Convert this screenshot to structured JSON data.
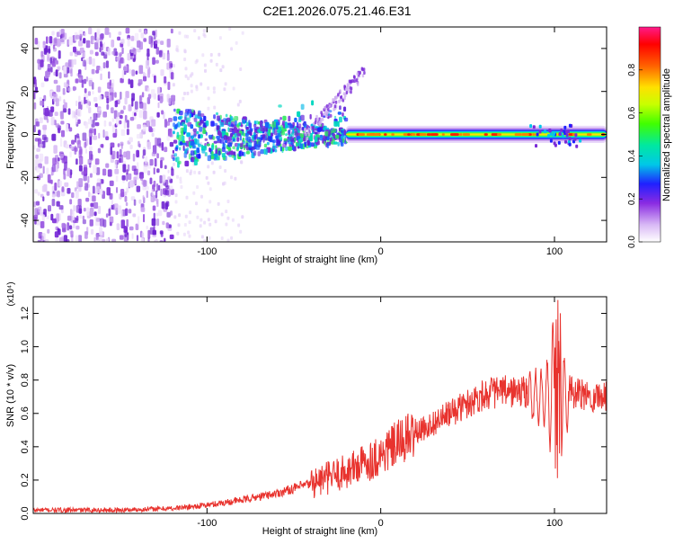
{
  "page_title": "C2E1.2026.075.21.46.E31",
  "chart_data": [
    {
      "type": "heatmap",
      "title": "C2E1.2026.075.21.46.E31",
      "xlabel": "Height of straight line (km)",
      "ylabel": "Frequency (Hz)",
      "xlim": [
        -200,
        130
      ],
      "ylim": [
        -50,
        50
      ],
      "x_ticks": [
        -100,
        0,
        100
      ],
      "x_tick_labels": [
        "-100",
        "0",
        "100"
      ],
      "y_ticks": [
        -40,
        -20,
        0,
        20,
        40
      ],
      "y_tick_labels": [
        "-40",
        "-20",
        "0",
        "20",
        "40"
      ],
      "colorbar": {
        "label": "Normalized spectral amplitude",
        "range": [
          0.0,
          1.0
        ],
        "ticks": [
          0.0,
          0.2,
          0.4,
          0.6,
          0.8
        ],
        "tick_labels": [
          "0.0",
          "0.2",
          "0.4",
          "0.6",
          "0.8"
        ]
      },
      "band": {
        "center_freq_hz": 0,
        "half_width_hz": 3,
        "noise_region_km": [
          -200,
          -120
        ],
        "scatter_region_km": [
          -120,
          -20
        ],
        "clean_band_region_km": [
          -20,
          130
        ]
      }
    },
    {
      "type": "line",
      "xlabel": "Height of straight line (km)",
      "ylabel": "SNR (10 * v/v)",
      "scale_label": "(x10⁴)",
      "xlim": [
        -200,
        130
      ],
      "ylim": [
        0,
        1.3
      ],
      "x_ticks": [
        -100,
        0,
        100
      ],
      "x_tick_labels": [
        "-100",
        "0",
        "100"
      ],
      "y_ticks": [
        0.0,
        0.2,
        0.4,
        0.6,
        0.8,
        1.0,
        1.2
      ],
      "y_tick_labels": [
        "0.0",
        "0.2",
        "0.4",
        "0.6",
        "0.8",
        "1.0",
        "1.2"
      ],
      "series": [
        {
          "name": "SNR",
          "color": "#e8332e",
          "x": [
            -200,
            -150,
            -120,
            -100,
            -80,
            -60,
            -40,
            -20,
            0,
            10,
            20,
            40,
            60,
            70,
            80,
            85,
            90,
            95,
            100,
            102,
            105,
            110,
            120,
            130
          ],
          "y": [
            0.02,
            0.02,
            0.03,
            0.05,
            0.08,
            0.12,
            0.18,
            0.25,
            0.35,
            0.42,
            0.48,
            0.6,
            0.72,
            0.73,
            0.73,
            0.72,
            0.65,
            0.6,
            0.5,
            1.1,
            0.8,
            0.72,
            0.7,
            0.71
          ]
        }
      ]
    }
  ]
}
